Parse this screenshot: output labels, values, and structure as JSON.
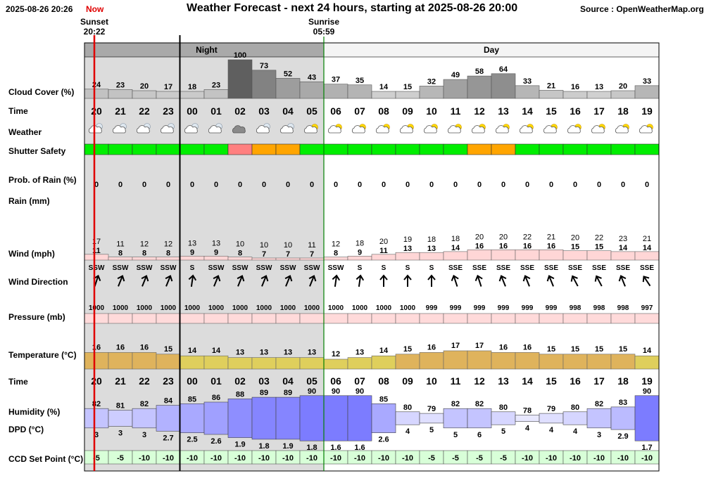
{
  "header": {
    "datetime": "2025-08-26 20:26",
    "now_label": "Now",
    "title": "Weather Forecast - next 24 hours, starting at 2025-08-26 20:00",
    "source": "Source : OpenWeatherMap.org"
  },
  "sun": {
    "sunset_label": "Sunset",
    "sunset_time": "20:22",
    "sunrise_label": "Sunrise",
    "sunrise_time": "05:59"
  },
  "periods": {
    "night": "Night",
    "day": "Day"
  },
  "row_labels": {
    "cloud": "Cloud Cover (%)",
    "time": "Time",
    "weather": "Weather",
    "shutter": "Shutter Safety",
    "prob_rain": "Prob. of Rain (%)",
    "rain": "Rain (mm)",
    "wind": "Wind (mph)",
    "wind_dir": "Wind Direction",
    "pressure": "Pressure (mb)",
    "temperature": "Temperature (°C)",
    "time2": "Time",
    "humidity": "Humidity (%)",
    "dpd": "DPD (°C)",
    "ccd": "CCD Set Point (°C)"
  },
  "colors": {
    "night_bg": "#dcdcdc",
    "safe": "#00ee00",
    "caution": "#ffa500",
    "unsafe": "#ff8080",
    "now_line": "#e00000",
    "day_divider": "#008000"
  },
  "chart_data": {
    "type": "table",
    "hours": [
      "20",
      "21",
      "22",
      "23",
      "00",
      "01",
      "02",
      "03",
      "04",
      "05",
      "06",
      "07",
      "08",
      "09",
      "10",
      "11",
      "12",
      "13",
      "14",
      "15",
      "16",
      "17",
      "18",
      "19"
    ],
    "cloud_cover": [
      24,
      23,
      20,
      17,
      18,
      23,
      100,
      73,
      52,
      43,
      37,
      35,
      14,
      15,
      32,
      49,
      58,
      64,
      33,
      21,
      16,
      13,
      20,
      33
    ],
    "weather_icons": [
      "partly-cloudy-night-icon",
      "partly-cloudy-night-icon",
      "partly-cloudy-night-icon",
      "partly-cloudy-night-icon",
      "partly-cloudy-night-icon",
      "partly-cloudy-night-icon",
      "overcast-icon",
      "partly-cloudy-night-icon",
      "partly-cloudy-night-icon",
      "partly-cloudy-day-icon",
      "partly-cloudy-day-icon",
      "partly-cloudy-day-icon",
      "partly-cloudy-day-icon",
      "partly-cloudy-day-icon",
      "partly-cloudy-day-icon",
      "partly-cloudy-day-icon",
      "partly-cloudy-day-icon",
      "partly-cloudy-day-icon",
      "partly-cloudy-day-icon",
      "partly-cloudy-day-icon",
      "partly-cloudy-day-icon",
      "partly-cloudy-day-icon",
      "partly-cloudy-day-icon",
      "partly-cloudy-day-icon"
    ],
    "shutter_safety": [
      "safe",
      "safe",
      "safe",
      "safe",
      "safe",
      "safe",
      "unsafe",
      "caution",
      "caution",
      "safe",
      "safe",
      "safe",
      "safe",
      "safe",
      "safe",
      "safe",
      "caution",
      "caution",
      "safe",
      "safe",
      "safe",
      "safe",
      "safe",
      "safe"
    ],
    "prob_rain": [
      0,
      0,
      0,
      0,
      0,
      0,
      0,
      0,
      0,
      0,
      0,
      0,
      0,
      0,
      0,
      0,
      0,
      0,
      0,
      0,
      0,
      0,
      0,
      0
    ],
    "rain_mm": [
      0,
      0,
      0,
      0,
      0,
      0,
      0,
      0,
      0,
      0,
      0,
      0,
      0,
      0,
      0,
      0,
      0,
      0,
      0,
      0,
      0,
      0,
      0,
      0
    ],
    "wind_gust": [
      17,
      11,
      12,
      12,
      13,
      13,
      10,
      10,
      10,
      11,
      12,
      18,
      20,
      19,
      18,
      18,
      20,
      20,
      22,
      21,
      20,
      22,
      23,
      21
    ],
    "wind_speed": [
      11,
      8,
      8,
      8,
      9,
      9,
      8,
      7,
      7,
      7,
      8,
      9,
      11,
      13,
      13,
      14,
      16,
      16,
      16,
      16,
      15,
      15,
      14,
      14
    ],
    "wind_dir": [
      "SSW",
      "SSW",
      "SSW",
      "SSW",
      "S",
      "SSW",
      "SSW",
      "SSW",
      "SSW",
      "SSW",
      "SSW",
      "S",
      "S",
      "S",
      "S",
      "SSE",
      "SSE",
      "SSE",
      "SSE",
      "SSE",
      "SSE",
      "SSE",
      "SSE",
      "SSE"
    ],
    "wind_arrow_deg": [
      18,
      22,
      22,
      22,
      8,
      22,
      22,
      22,
      22,
      22,
      8,
      8,
      0,
      0,
      0,
      -18,
      -18,
      -22,
      -22,
      -22,
      -28,
      -28,
      -22,
      -34
    ],
    "pressure_mb": [
      1000,
      1000,
      1000,
      1000,
      1000,
      1000,
      1000,
      1000,
      1000,
      1000,
      1000,
      1000,
      1000,
      1000,
      999,
      999,
      999,
      999,
      999,
      999,
      998,
      998,
      998,
      997
    ],
    "temperature": [
      16,
      16,
      16,
      15,
      14,
      14,
      13,
      13,
      13,
      13,
      12,
      13,
      14,
      15,
      16,
      17,
      17,
      16,
      16,
      15,
      15,
      15,
      15,
      14
    ],
    "humidity": [
      82,
      81,
      82,
      84,
      85,
      86,
      88,
      89,
      89,
      90,
      90,
      90,
      85,
      80,
      79,
      82,
      82,
      80,
      78,
      79,
      80,
      82,
      83,
      90
    ],
    "dpd": [
      3,
      3,
      3,
      2.7,
      2.5,
      2.6,
      1.9,
      1.8,
      1.9,
      1.8,
      1.6,
      1.6,
      2.6,
      4,
      5,
      5,
      6,
      5,
      4,
      4,
      4,
      3,
      2.9,
      1.7
    ],
    "ccd_set_point": [
      -5,
      -5,
      -10,
      -10,
      -10,
      -10,
      -10,
      -10,
      -10,
      -10,
      -10,
      -10,
      -10,
      -10,
      -5,
      -5,
      -5,
      -5,
      -10,
      -10,
      -10,
      -10,
      -10,
      -10
    ]
  }
}
